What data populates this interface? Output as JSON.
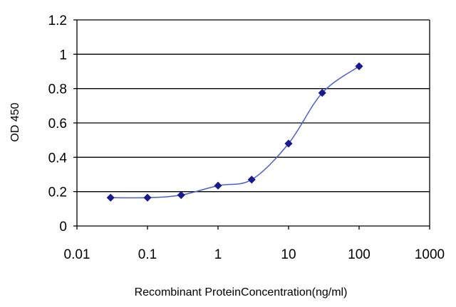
{
  "chart_data": {
    "type": "line",
    "xlabel": "Recombinant ProteinConcentration(ng/ml)",
    "ylabel": "OD 450",
    "x_scale": "log",
    "xlim": [
      0.01,
      1000
    ],
    "ylim": [
      0,
      1.2
    ],
    "x_ticks": [
      "0.01",
      "0.1",
      "1",
      "10",
      "100",
      "1000"
    ],
    "x_tick_values": [
      0.01,
      0.1,
      1,
      10,
      100,
      1000
    ],
    "y_ticks": [
      "0",
      "0.2",
      "0.4",
      "0.6",
      "0.8",
      "1",
      "1.2"
    ],
    "y_tick_values": [
      0,
      0.2,
      0.4,
      0.6,
      0.8,
      1.0,
      1.2
    ],
    "grid": "horizontal",
    "legend": "none",
    "series": [
      {
        "color": "#1a1a8c",
        "marker": "diamond",
        "x": [
          0.03,
          0.1,
          0.3,
          1,
          3,
          10,
          30,
          100
        ],
        "y": [
          0.165,
          0.165,
          0.18,
          0.235,
          0.27,
          0.48,
          0.775,
          0.93
        ]
      }
    ]
  }
}
